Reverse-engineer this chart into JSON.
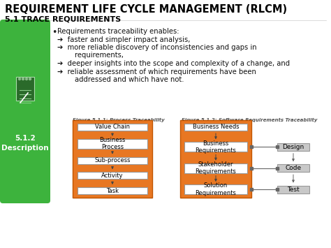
{
  "title": "REQUIREMENT LIFE CYCLE MANAGEMENT (RLCM)",
  "subtitle": "5.1 TRACE REQUIREMENTS",
  "bg_color": "#ffffff",
  "title_color": "#000000",
  "subtitle_color": "#000000",
  "green_color": "#3db33d",
  "orange_color": "#e87722",
  "white_box_color": "#ffffff",
  "gray_box_color": "#c8c8c8",
  "fig1_title": "Figure 5.1.1: Process Traceability",
  "fig1_boxes": [
    "Value Chain",
    "Business\nProcess",
    "Sub-process",
    "Activity",
    "Task"
  ],
  "fig2_title": "Figure 5.1.2: Software Requirements Traceability",
  "fig2_boxes": [
    "Business Needs",
    "Business\nRequirements",
    "Stakeholder\nRequirements",
    "Solution\nRequirements"
  ],
  "fig2_side_boxes": [
    "Design",
    "Code",
    "Test"
  ],
  "sidebar_title": "5.1.2\nDescription",
  "sidebar_bg": "#3db33d",
  "bullet_lines": [
    "Requirements traceability enables:",
    "➔  faster and simpler impact analysis,",
    "➔  more reliable discovery of inconsistencies and gaps in",
    "        requirements,",
    "➔  deeper insights into the scope and complexity of a change, and",
    "➔  reliable assessment of which requirements have been",
    "        addressed and which have not."
  ]
}
